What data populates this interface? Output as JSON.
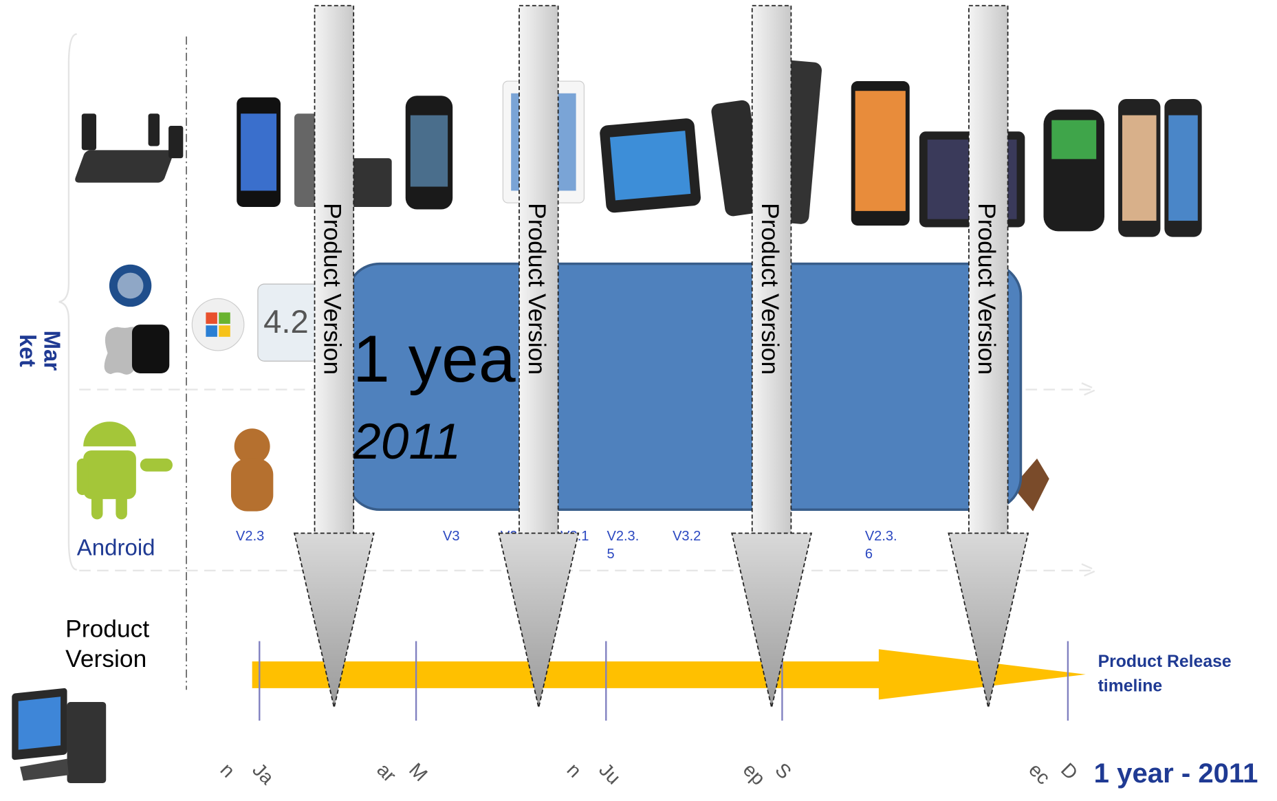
{
  "market_label": [
    "Mar",
    "ket"
  ],
  "android_label": "Android",
  "product_version_label": [
    "Product",
    "Version"
  ],
  "versions": [
    [
      "V2.3"
    ],
    [
      "V3"
    ],
    [
      "V2"
    ],
    [
      "V3.1"
    ],
    [
      "V2.3.",
      "5"
    ],
    [
      "V3.2"
    ],
    [
      "V2.3.",
      "6"
    ]
  ],
  "release_arrows": [
    "Product Version",
    "Product Version",
    "Product Version",
    "Product Version"
  ],
  "period_box": {
    "title": "1 year",
    "subtitle": "2011"
  },
  "months": [
    [
      "Ja",
      "n"
    ],
    [
      "M",
      "ar"
    ],
    [
      "Ju",
      "n"
    ],
    [
      "S",
      "ep"
    ],
    [
      "D",
      "ec"
    ]
  ],
  "timeline_label": [
    "Product Release",
    "timeline"
  ],
  "footer": "1 year - 2011"
}
